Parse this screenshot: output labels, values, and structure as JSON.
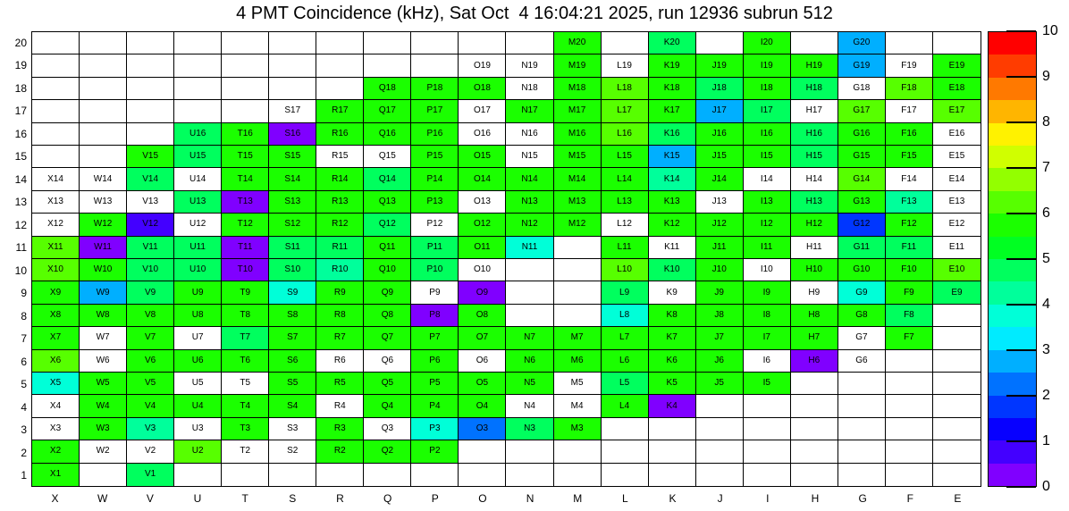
{
  "title": "4 PMT Coincidence (kHz), Sat Oct  4 16:04:21 2025, run 12936 subrun 512",
  "chart_data": {
    "type": "heatmap",
    "title": "4 PMT Coincidence (kHz), Sat Oct  4 16:04:21 2025, run 12936 subrun 512",
    "value_unit": "kHz",
    "run_info": {
      "run": "12936",
      "subrun": "512",
      "datetime": "Sat Oct  4 16:04:21 2025"
    },
    "x_categories": [
      "X",
      "W",
      "V",
      "U",
      "T",
      "S",
      "R",
      "Q",
      "P",
      "O",
      "N",
      "M",
      "L",
      "K",
      "J",
      "I",
      "H",
      "G",
      "F",
      "E"
    ],
    "y_categories": [
      1,
      2,
      3,
      4,
      5,
      6,
      7,
      8,
      9,
      10,
      11,
      12,
      13,
      14,
      15,
      16,
      17,
      18,
      19,
      20
    ],
    "grid_on": true,
    "legend_position": "right-colorbar",
    "colorbar": {
      "min": 0,
      "max": 10,
      "band_size": 0.5,
      "tick_labels": [
        0,
        1,
        2,
        3,
        4,
        5,
        6,
        7,
        8,
        9,
        10
      ],
      "band_colors": [
        "#8000ff",
        "#4300ff",
        "#0700ff",
        "#0036ff",
        "#0072ff",
        "#00afff",
        "#00ebff",
        "#00ffd8",
        "#00ff9b",
        "#00ff5e",
        "#00ff22",
        "#1bff00",
        "#57ff00",
        "#93ff00",
        "#d0ff00",
        "#fff200",
        "#ffb500",
        "#ff7900",
        "#ff3c00",
        "#ff0000"
      ]
    },
    "cells": {
      "M20": 5.7,
      "K20": 4.7,
      "I20": 5.7,
      "G20": 2.7,
      "O19": null,
      "N19": null,
      "M19": 5.7,
      "L19": null,
      "K19": 5.7,
      "J19": 5.7,
      "I19": 5.7,
      "H19": 5.7,
      "G19": 2.7,
      "F19": null,
      "E19": 5.7,
      "Q18": 5.7,
      "P18": 5.7,
      "O18": 5.7,
      "N18": null,
      "M18": 5.7,
      "L18": 6.2,
      "K18": 5.7,
      "J18": 4.7,
      "I18": 5.7,
      "H18": 4.7,
      "G18": null,
      "F18": 6.2,
      "E18": 5.7,
      "S17": null,
      "R17": 5.7,
      "Q17": 5.7,
      "P17": 5.7,
      "O17": null,
      "N17": 5.7,
      "M17": 5.7,
      "L17": 6.2,
      "K17": 5.7,
      "J17": 2.7,
      "I17": 4.7,
      "H17": null,
      "G17": 6.2,
      "F17": null,
      "E17": 6.2,
      "U16": 4.7,
      "T16": 5.7,
      "S16": 0.4,
      "R16": 5.7,
      "Q16": 5.7,
      "P16": 5.7,
      "O16": null,
      "N16": null,
      "M16": 5.7,
      "L16": 6.2,
      "K16": 4.7,
      "J16": 5.7,
      "I16": 5.7,
      "H16": 4.7,
      "G16": 5.7,
      "F16": 5.7,
      "E16": null,
      "V15": 5.7,
      "U15": 4.7,
      "T15": 5.7,
      "S15": 5.7,
      "R15": null,
      "Q15": null,
      "P15": 5.7,
      "O15": 5.7,
      "N15": null,
      "M15": 5.7,
      "L15": 5.7,
      "K15": 2.7,
      "J15": 5.7,
      "I15": 5.7,
      "H15": 4.7,
      "G15": 5.7,
      "F15": 5.7,
      "E15": null,
      "X14": null,
      "W14": null,
      "V14": 4.7,
      "U14": null,
      "T14": 5.7,
      "S14": 5.7,
      "R14": 5.7,
      "Q14": 4.7,
      "P14": 5.7,
      "O14": 5.7,
      "N14": 5.7,
      "M14": 5.7,
      "L14": 5.7,
      "K14": 4.2,
      "J14": 5.7,
      "I14": null,
      "H14": null,
      "G14": 6.2,
      "F14": null,
      "E14": null,
      "X13": null,
      "W13": null,
      "V13": null,
      "U13": 4.7,
      "T13": 0.4,
      "S13": 5.7,
      "R13": 5.7,
      "Q13": 5.7,
      "P13": 5.7,
      "O13": null,
      "N13": 5.7,
      "M13": 5.7,
      "L13": 5.7,
      "K13": 5.7,
      "J13": null,
      "I13": 5.7,
      "H13": 4.7,
      "G13": 5.7,
      "F13": 4.2,
      "E13": null,
      "X12": null,
      "W12": 5.7,
      "V12": 0.9,
      "U12": null,
      "T12": 5.7,
      "S12": 5.7,
      "R12": 5.7,
      "Q12": 4.7,
      "P12": null,
      "O12": 5.7,
      "N12": 5.7,
      "M12": 5.7,
      "L12": null,
      "K12": 5.7,
      "J12": 5.7,
      "I12": 5.7,
      "H12": 5.7,
      "G12": 1.7,
      "F12": 5.7,
      "E12": null,
      "X11": 6.2,
      "W11": 0.4,
      "V11": 4.7,
      "U11": 4.7,
      "T11": 0.4,
      "S11": 4.7,
      "R11": 4.7,
      "Q11": 5.7,
      "P11": 4.7,
      "O11": 5.7,
      "N11": 3.7,
      "L11": 5.7,
      "K11": null,
      "J11": 5.7,
      "I11": 5.7,
      "H11": null,
      "G11": 4.7,
      "F11": 4.7,
      "E11": null,
      "X10": 6.2,
      "W10": 5.7,
      "V10": 4.7,
      "U10": 4.7,
      "T10": 0.4,
      "S10": 4.7,
      "R10": 4.2,
      "Q10": 5.7,
      "P10": 4.7,
      "O10": null,
      "L10": 6.2,
      "K10": 4.7,
      "J10": 5.7,
      "I10": null,
      "H10": 5.7,
      "G10": 5.7,
      "F10": 5.7,
      "E10": 6.2,
      "X9": 5.7,
      "W9": 2.7,
      "V9": 4.7,
      "U9": 5.7,
      "T9": 5.7,
      "S9": 3.7,
      "R9": 5.7,
      "Q9": 5.7,
      "P9": null,
      "O9": 0.4,
      "L9": 4.7,
      "K9": null,
      "J9": 5.7,
      "I9": 5.7,
      "H9": null,
      "G9": 3.7,
      "F9": 5.7,
      "E9": 4.7,
      "X8": 5.7,
      "W8": 5.7,
      "V8": 5.7,
      "U8": 5.7,
      "T8": 5.7,
      "S8": 5.7,
      "R8": 5.7,
      "Q8": 5.7,
      "P8": 0.4,
      "O8": 5.7,
      "L8": 3.7,
      "K8": 5.7,
      "J8": 5.7,
      "I8": 5.7,
      "H8": 5.7,
      "G8": 5.7,
      "F8": 4.7,
      "X7": 5.7,
      "W7": null,
      "V7": 5.7,
      "U7": null,
      "T7": 4.7,
      "S7": 5.7,
      "R7": 5.7,
      "Q7": 5.7,
      "P7": 5.7,
      "O7": 5.7,
      "N7": 5.7,
      "M7": 5.7,
      "L7": 5.7,
      "K7": 5.7,
      "J7": 5.7,
      "I7": 5.7,
      "H7": 5.7,
      "G7": null,
      "F7": 5.7,
      "X6": 6.2,
      "W6": null,
      "V6": 5.7,
      "U6": 5.7,
      "T6": 5.7,
      "S6": 5.7,
      "R6": null,
      "Q6": null,
      "P6": 5.7,
      "O6": null,
      "N6": 5.7,
      "M6": 5.7,
      "L6": 5.7,
      "K6": 5.7,
      "J6": 5.7,
      "I6": null,
      "H6": 0.4,
      "G6": null,
      "X5": 3.7,
      "W5": 5.7,
      "V5": 5.7,
      "U5": null,
      "T5": null,
      "S5": 5.7,
      "R5": 5.7,
      "Q5": 5.7,
      "P5": 5.7,
      "O5": 5.7,
      "N5": 5.7,
      "M5": null,
      "L5": 4.7,
      "K5": 5.7,
      "J5": 5.7,
      "I5": 5.7,
      "X4": null,
      "W4": 5.7,
      "V4": 5.7,
      "U4": 5.7,
      "T4": 5.7,
      "S4": 5.7,
      "R4": null,
      "Q4": 5.7,
      "P4": 5.7,
      "O4": 5.7,
      "N4": null,
      "M4": null,
      "L4": 5.7,
      "K4": 0.4,
      "X3": null,
      "W3": 5.7,
      "V3": 4.2,
      "U3": null,
      "T3": 5.7,
      "S3": null,
      "R3": 5.7,
      "Q3": null,
      "P3": 3.7,
      "O3": 2.2,
      "N3": 4.7,
      "M3": 5.7,
      "X2": 5.7,
      "W2": null,
      "V2": null,
      "U2": 6.2,
      "T2": null,
      "S2": null,
      "R2": 5.7,
      "Q2": 5.7,
      "P2": 5.7,
      "X1": 5.7,
      "V1": 4.7
    }
  }
}
